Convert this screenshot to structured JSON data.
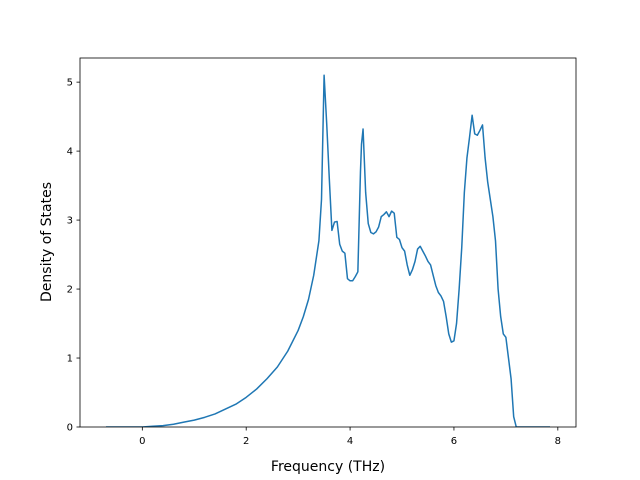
{
  "chart_data": {
    "type": "line",
    "title": "",
    "xlabel": "Frequency (THz)",
    "ylabel": "Density of States",
    "xlim": [
      -1.2,
      8.35
    ],
    "ylim": [
      0,
      5.35
    ],
    "xticks": [
      0,
      2,
      4,
      6,
      8
    ],
    "yticks": [
      0,
      1,
      2,
      3,
      4,
      5
    ],
    "grid": false,
    "legend": "none",
    "series": [
      {
        "color": "#1f77b4",
        "x": [
          -0.7,
          -0.5,
          -0.3,
          -0.1,
          0.0,
          0.2,
          0.4,
          0.6,
          0.8,
          1.0,
          1.2,
          1.4,
          1.6,
          1.8,
          2.0,
          2.2,
          2.4,
          2.6,
          2.8,
          3.0,
          3.1,
          3.2,
          3.3,
          3.4,
          3.45,
          3.5,
          3.55,
          3.6,
          3.65,
          3.7,
          3.75,
          3.8,
          3.85,
          3.9,
          3.95,
          4.0,
          4.05,
          4.1,
          4.15,
          4.2,
          4.22,
          4.25,
          4.3,
          4.35,
          4.4,
          4.45,
          4.5,
          4.55,
          4.6,
          4.65,
          4.7,
          4.75,
          4.8,
          4.85,
          4.9,
          4.95,
          5.0,
          5.05,
          5.1,
          5.15,
          5.2,
          5.25,
          5.3,
          5.35,
          5.4,
          5.45,
          5.5,
          5.55,
          5.6,
          5.65,
          5.7,
          5.75,
          5.8,
          5.85,
          5.9,
          5.95,
          6.0,
          6.05,
          6.1,
          6.15,
          6.2,
          6.25,
          6.3,
          6.35,
          6.4,
          6.45,
          6.5,
          6.55,
          6.6,
          6.65,
          6.7,
          6.75,
          6.8,
          6.85,
          6.9,
          6.95,
          7.0,
          7.05,
          7.1,
          7.15,
          7.2,
          7.3,
          7.5,
          7.7,
          7.85
        ],
        "y": [
          0.0,
          0.0,
          0.0,
          0.0,
          0.0,
          0.01,
          0.02,
          0.04,
          0.07,
          0.1,
          0.14,
          0.19,
          0.26,
          0.33,
          0.43,
          0.55,
          0.7,
          0.87,
          1.1,
          1.4,
          1.6,
          1.85,
          2.2,
          2.7,
          3.3,
          5.1,
          4.4,
          3.6,
          2.85,
          2.97,
          2.98,
          2.65,
          2.55,
          2.52,
          2.15,
          2.12,
          2.12,
          2.18,
          2.25,
          3.7,
          4.1,
          4.32,
          3.4,
          2.95,
          2.82,
          2.8,
          2.83,
          2.9,
          3.05,
          3.08,
          3.12,
          3.05,
          3.13,
          3.1,
          2.75,
          2.72,
          2.6,
          2.55,
          2.35,
          2.2,
          2.28,
          2.4,
          2.58,
          2.62,
          2.55,
          2.48,
          2.4,
          2.35,
          2.2,
          2.05,
          1.95,
          1.9,
          1.82,
          1.6,
          1.35,
          1.23,
          1.25,
          1.5,
          2.0,
          2.6,
          3.4,
          3.9,
          4.2,
          4.52,
          4.25,
          4.23,
          4.3,
          4.38,
          3.9,
          3.55,
          3.3,
          3.05,
          2.7,
          2.0,
          1.6,
          1.35,
          1.3,
          1.0,
          0.7,
          0.15,
          0.0,
          0.0,
          0.0,
          0.0,
          0.0
        ]
      }
    ]
  }
}
